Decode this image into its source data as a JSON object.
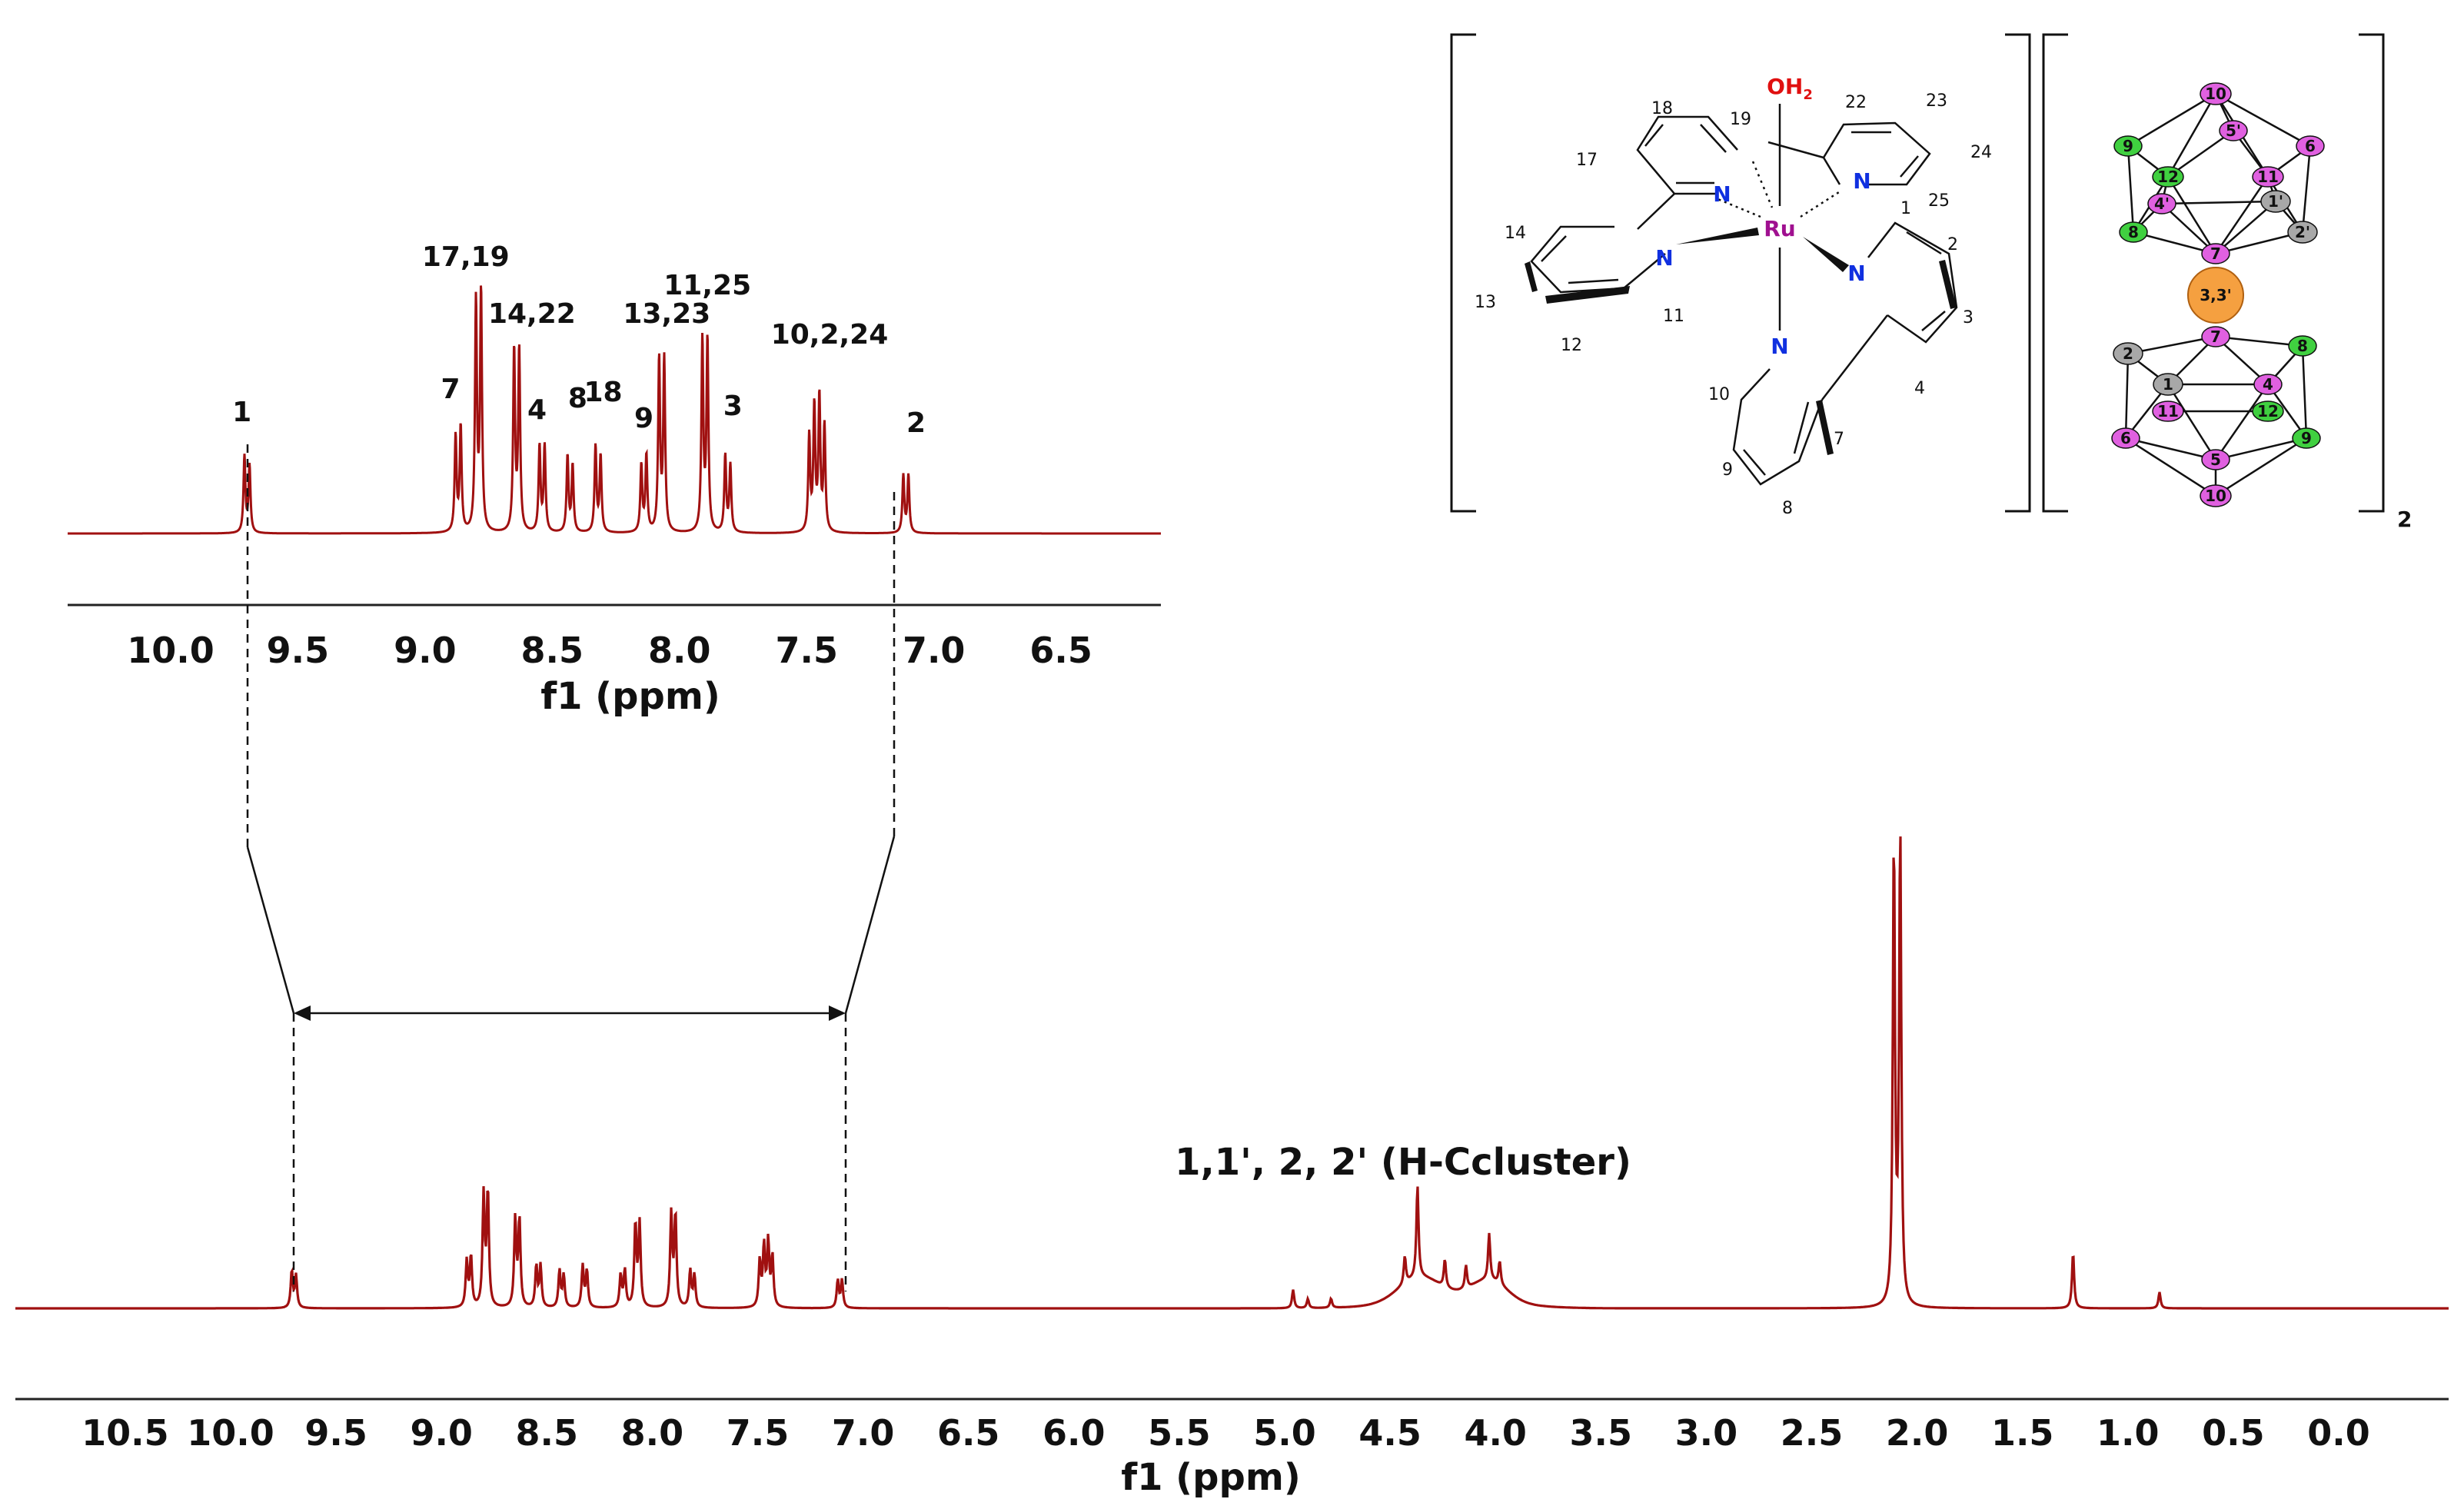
{
  "chart_data": [
    {
      "type": "line",
      "panel": "main-spectrum",
      "xlabel": "f1 (ppm)",
      "xlim": [
        10.8,
        -0.2
      ],
      "x_reversed": true,
      "ticks": [
        "10.5",
        "10.0",
        "9.5",
        "9.0",
        "8.5",
        "8.0",
        "7.5",
        "7.0",
        "6.5",
        "6.0",
        "5.5",
        "5.0",
        "4.5",
        "4.0",
        "3.5",
        "3.0",
        "2.5",
        "2.0",
        "1.5",
        "1.0",
        "0.5",
        "0.0"
      ],
      "series_color": "#a01010",
      "peaks": [
        {
          "ppm": 9.71,
          "h": 0.08
        },
        {
          "ppm": 9.69,
          "h": 0.07
        },
        {
          "ppm": 8.88,
          "h": 0.1
        },
        {
          "ppm": 8.86,
          "h": 0.11
        },
        {
          "ppm": 8.8,
          "h": 0.24
        },
        {
          "ppm": 8.78,
          "h": 0.25
        },
        {
          "ppm": 8.65,
          "h": 0.19
        },
        {
          "ppm": 8.63,
          "h": 0.19
        },
        {
          "ppm": 8.55,
          "h": 0.09
        },
        {
          "ppm": 8.53,
          "h": 0.09
        },
        {
          "ppm": 8.44,
          "h": 0.08
        },
        {
          "ppm": 8.42,
          "h": 0.07
        },
        {
          "ppm": 8.33,
          "h": 0.09
        },
        {
          "ppm": 8.31,
          "h": 0.08
        },
        {
          "ppm": 8.15,
          "h": 0.07
        },
        {
          "ppm": 8.13,
          "h": 0.08
        },
        {
          "ppm": 8.08,
          "h": 0.18
        },
        {
          "ppm": 8.06,
          "h": 0.18
        },
        {
          "ppm": 7.91,
          "h": 0.2
        },
        {
          "ppm": 7.89,
          "h": 0.2
        },
        {
          "ppm": 7.82,
          "h": 0.08
        },
        {
          "ppm": 7.8,
          "h": 0.07
        },
        {
          "ppm": 7.49,
          "h": 0.1
        },
        {
          "ppm": 7.47,
          "h": 0.13
        },
        {
          "ppm": 7.45,
          "h": 0.14
        },
        {
          "ppm": 7.43,
          "h": 0.11
        },
        {
          "ppm": 7.12,
          "h": 0.06
        },
        {
          "ppm": 7.1,
          "h": 0.06
        },
        {
          "ppm": 4.96,
          "h": 0.04
        },
        {
          "ppm": 4.89,
          "h": 0.02
        },
        {
          "ppm": 4.78,
          "h": 0.02
        },
        {
          "ppm": 4.37,
          "h": 0.2
        },
        {
          "ppm": 4.43,
          "h": 0.06
        },
        {
          "ppm": 4.24,
          "h": 0.06
        },
        {
          "ppm": 4.14,
          "h": 0.05
        },
        {
          "ppm": 4.03,
          "h": 0.1
        },
        {
          "ppm": 3.98,
          "h": 0.05
        },
        {
          "ppm": 2.11,
          "h": 1.0
        },
        {
          "ppm": 2.08,
          "h": 1.02
        },
        {
          "ppm": 1.26,
          "h": 0.12
        },
        {
          "ppm": 0.85,
          "h": 0.035
        }
      ],
      "annotations": [
        "1,1', 2, 2' (H-Ccluster)"
      ]
    },
    {
      "type": "line",
      "panel": "inset-spectrum",
      "xlabel": "f1 (ppm)",
      "xlim": [
        10.5,
        6.0
      ],
      "x_reversed": true,
      "ticks": [
        "10.0",
        "9.5",
        "9.0",
        "8.5",
        "8.0",
        "7.5",
        "7.0",
        "6.5"
      ],
      "series_color": "#a01010",
      "peak_labels": [
        {
          "text": "1",
          "ppm": 9.72
        },
        {
          "text": "7",
          "ppm": 8.9
        },
        {
          "text": "17,19",
          "ppm": 8.84
        },
        {
          "text": "14,22",
          "ppm": 8.58
        },
        {
          "text": "4",
          "ppm": 8.56
        },
        {
          "text": "8",
          "ppm": 8.4
        },
        {
          "text": "18",
          "ppm": 8.3
        },
        {
          "text": "9",
          "ppm": 8.14
        },
        {
          "text": "13,23",
          "ppm": 8.05
        },
        {
          "text": "11,25",
          "ppm": 7.89
        },
        {
          "text": "3",
          "ppm": 7.79
        },
        {
          "text": "10,2,24",
          "ppm": 7.41
        },
        {
          "text": "2",
          "ppm": 7.07
        }
      ]
    }
  ],
  "molecule": {
    "metal": "Ru",
    "aqua_ligand": "OH",
    "aqua_sub": "2",
    "nitrogen": "N",
    "counter_charge": "2",
    "atom_numbers": [
      "1",
      "2",
      "3",
      "4",
      "7",
      "8",
      "9",
      "10",
      "11",
      "12",
      "13",
      "14",
      "17",
      "18",
      "19",
      "22",
      "23",
      "24",
      "25"
    ],
    "cluster_upper": [
      "10",
      "5'",
      "9",
      "12",
      "11",
      "6",
      "4'",
      "1'",
      "8",
      "2'",
      "7"
    ],
    "cluster_bridge": "3,3'",
    "cluster_lower": [
      "7",
      "8",
      "2",
      "1",
      "4",
      "11",
      "12",
      "6",
      "5",
      "9",
      "10"
    ]
  },
  "colors": {
    "spectrum": "#a01010",
    "boron_magenta": "#e060e0",
    "boron_green": "#40d040",
    "carbon_gray": "#a8a8a8",
    "cobalt_orange": "#f5a040",
    "ru": "#a01090",
    "nitrogen": "#1030e0",
    "oxygen": "#e01010"
  }
}
